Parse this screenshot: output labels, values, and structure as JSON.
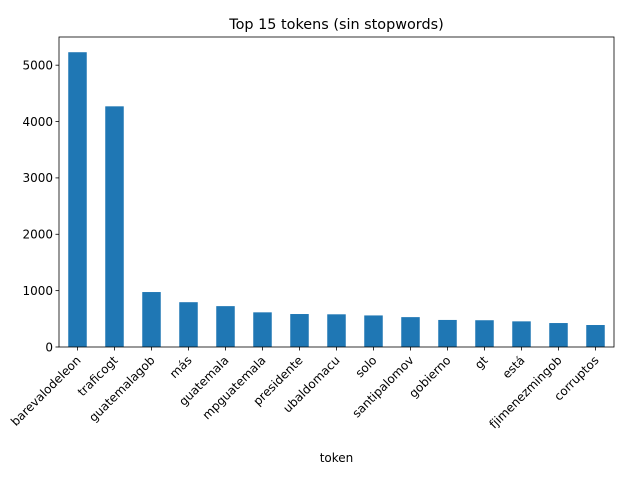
{
  "chart_data": {
    "type": "bar",
    "title": "Top 15 tokens (sin stopwords)",
    "xlabel": "token",
    "ylabel": "",
    "categories": [
      "barevalodeleon",
      "traficogt",
      "guatemalagob",
      "más",
      "guatemala",
      "mpguatemala",
      "presidente",
      "ubaldomacu",
      "solo",
      "santipalomov",
      "gobierno",
      "gt",
      "está",
      "fjimenezmingob",
      "corruptos"
    ],
    "values": [
      5230,
      4270,
      975,
      795,
      725,
      615,
      585,
      580,
      560,
      530,
      480,
      475,
      455,
      425,
      390
    ],
    "yticks": [
      0,
      1000,
      2000,
      3000,
      4000,
      5000
    ],
    "ylim": [
      0,
      5500
    ],
    "grid": false,
    "bar_color": "#1f77b4"
  }
}
